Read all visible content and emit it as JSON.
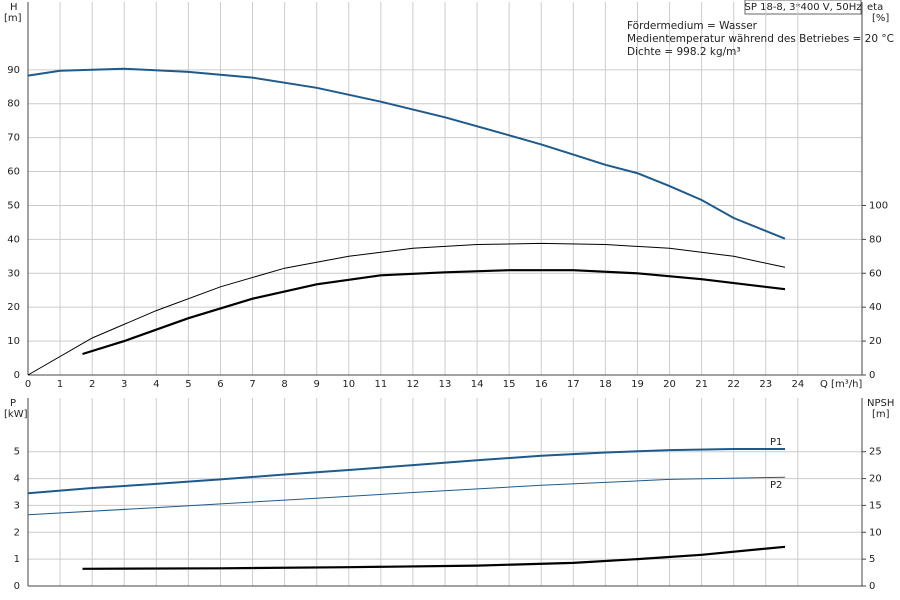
{
  "chart_data": [
    {
      "type": "line",
      "title": "SP 18-8, 3*400 V, 50Hz",
      "annotations": [
        "Fördermedium = Wasser",
        "Medientemperatur während des Betriebes = 20 °C",
        "Dichte = 998.2 kg/m³"
      ],
      "ylabel": [
        "H",
        "[m]"
      ],
      "y2label": [
        "eta",
        "[%]"
      ],
      "xlabel": "Q [m³/h]",
      "xlim": [
        0,
        26
      ],
      "xticks": [
        0,
        1,
        2,
        3,
        4,
        5,
        6,
        7,
        8,
        9,
        10,
        11,
        12,
        13,
        14,
        15,
        16,
        17,
        18,
        19,
        20,
        21,
        22,
        23,
        24
      ],
      "ylim": [
        0,
        110
      ],
      "yticks": [
        0,
        10,
        20,
        30,
        40,
        50,
        60,
        70,
        80,
        90
      ],
      "y2lim": [
        0,
        220
      ],
      "y2ticks": [
        0,
        20,
        40,
        60,
        80,
        100
      ],
      "grid": true,
      "series": [
        {
          "color": "#1f5a8c",
          "width": 2,
          "x": [
            0,
            1,
            3,
            5,
            7,
            9,
            11,
            13,
            15,
            16,
            17,
            18,
            19,
            20,
            21,
            22,
            23.6
          ],
          "values": [
            88.3,
            89.7,
            90.3,
            89.4,
            87.7,
            84.7,
            80.6,
            76,
            70.7,
            68,
            65,
            62,
            59.5,
            55.7,
            51.6,
            46.3,
            40.2
          ]
        },
        {
          "color": "#000000",
          "width": 1,
          "axis": "y2",
          "x": [
            0,
            2,
            4,
            6,
            8,
            10,
            12,
            14,
            16,
            18,
            20,
            22,
            23.6
          ],
          "values": [
            0,
            21.8,
            38,
            52,
            63,
            70,
            74.7,
            77,
            77.6,
            77,
            74.7,
            70,
            63.5
          ]
        },
        {
          "color": "#000000",
          "width": 2.2,
          "axis": "y2",
          "x": [
            1.7,
            3,
            5,
            7,
            9,
            11,
            13,
            15,
            17,
            19,
            21,
            23.6
          ],
          "values": [
            12.4,
            20,
            33.5,
            45,
            53.5,
            58.8,
            60.6,
            61.8,
            61.8,
            60,
            56.5,
            50.6
          ]
        }
      ]
    },
    {
      "type": "line",
      "ylabel": [
        "P",
        "[kW]"
      ],
      "y2label": [
        "NPSH",
        "[m]"
      ],
      "xlim": [
        0,
        26
      ],
      "ylim": [
        0,
        7
      ],
      "yticks": [
        0,
        1,
        2,
        3,
        4,
        5
      ],
      "y2lim": [
        0,
        35
      ],
      "y2ticks": [
        0,
        5,
        10,
        15,
        20,
        25
      ],
      "grid": true,
      "series": [
        {
          "name": "P1",
          "color": "#1f5a8c",
          "width": 2,
          "x": [
            0,
            2,
            4,
            6,
            8,
            10,
            12,
            14,
            16,
            18,
            20,
            22,
            23.6
          ],
          "values": [
            3.45,
            3.65,
            3.8,
            3.97,
            4.15,
            4.32,
            4.5,
            4.68,
            4.85,
            4.97,
            5.06,
            5.1,
            5.1
          ]
        },
        {
          "name": "P2",
          "color": "#1f5a8c",
          "width": 1,
          "x": [
            0,
            4,
            8,
            12,
            16,
            20,
            23.6
          ],
          "values": [
            2.65,
            2.92,
            3.2,
            3.48,
            3.75,
            3.97,
            4.05
          ]
        },
        {
          "color": "#000000",
          "width": 2.2,
          "axis": "y2",
          "x": [
            1.7,
            6,
            10,
            14,
            17,
            19,
            21,
            23.6
          ],
          "values": [
            3.2,
            3.3,
            3.5,
            3.8,
            4.3,
            5.0,
            5.8,
            7.3
          ]
        }
      ]
    }
  ]
}
